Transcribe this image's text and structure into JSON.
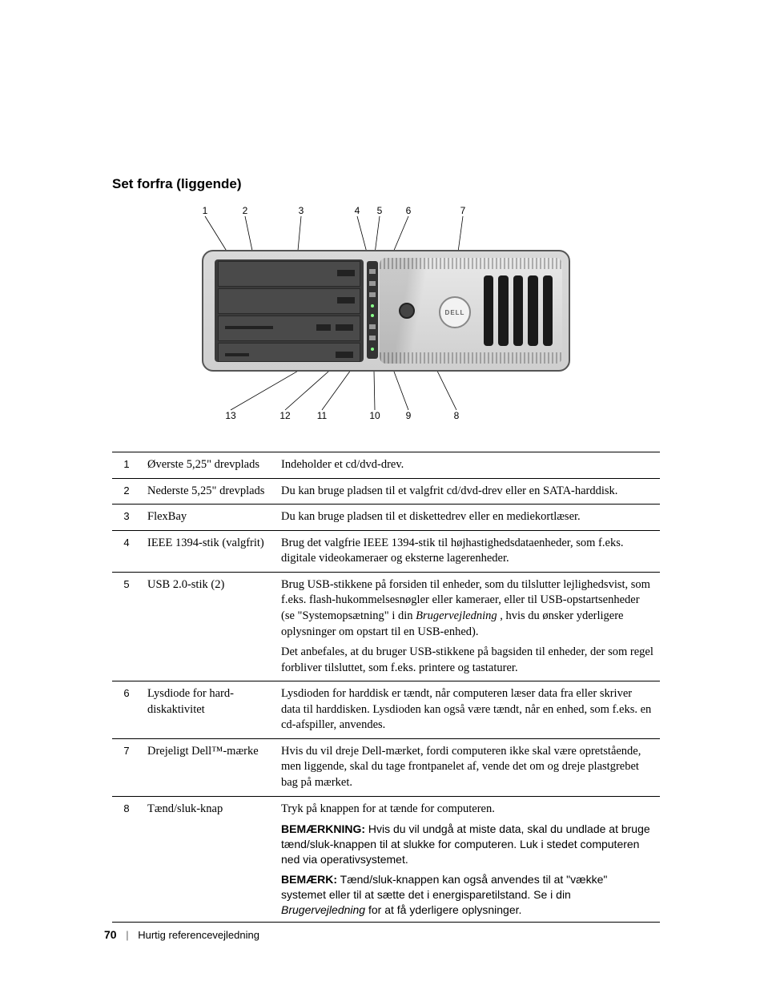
{
  "heading": "Set forfra (liggende)",
  "diagram": {
    "top_labels": [
      "1",
      "2",
      "3",
      "4",
      "5",
      "6",
      "7"
    ],
    "bottom_labels": [
      "13",
      "12",
      "11",
      "10",
      "9",
      "8"
    ],
    "badge_text": "DELL"
  },
  "rows": [
    {
      "num": "1",
      "name": "Øverste 5,25\" drevplads",
      "desc": [
        {
          "type": "plain",
          "text": "Indeholder et cd/dvd-drev."
        }
      ]
    },
    {
      "num": "2",
      "name": "Nederste 5,25\" drevplads",
      "desc": [
        {
          "type": "plain",
          "text": "Du kan bruge pladsen til et valgfrit cd/dvd-drev eller en SATA-harddisk."
        }
      ]
    },
    {
      "num": "3",
      "name": "FlexBay",
      "desc": [
        {
          "type": "plain",
          "text": "Du kan bruge pladsen til et diskettedrev eller en mediekortlæser."
        }
      ]
    },
    {
      "num": "4",
      "name": "IEEE 1394-stik (valgfrit)",
      "desc": [
        {
          "type": "plain",
          "text": "Brug det valgfrie IEEE 1394-stik til højhastighedsdataenheder, som f.eks. digitale videokameraer og eksterne lagerenheder."
        }
      ]
    },
    {
      "num": "5",
      "name": "USB 2.0-stik (2)",
      "desc": [
        {
          "type": "mixed",
          "parts": [
            {
              "t": "Brug USB-stikkene på forsiden til enheder, som du tilslutter lejlighedsvist, som f.eks. flash-hukommelsesnøgler eller kameraer, eller til USB-opstartsenheder (se \"Systemopsætning\" i din "
            },
            {
              "i": "Brugervejledning"
            },
            {
              "t": " , hvis du ønsker yderligere oplysninger om opstart til en USB-enhed)."
            }
          ]
        },
        {
          "type": "plain",
          "text": "Det anbefales, at du bruger USB-stikkene på bagsiden til enheder, der som regel forbliver tilsluttet, som f.eks. printere og tastaturer."
        }
      ]
    },
    {
      "num": "6",
      "name": "Lysdiode for hard-diskaktivitet",
      "desc": [
        {
          "type": "plain",
          "text": "Lysdioden for harddisk er tændt, når computeren læser data fra eller skriver data til harddisken. Lysdioden kan også være tændt, når en enhed, som f.eks. en cd-afspiller, anvendes."
        }
      ]
    },
    {
      "num": "7",
      "name": "Drejeligt Dell™-mærke",
      "desc": [
        {
          "type": "plain",
          "text": "Hvis du vil dreje Dell-mærket, fordi computeren ikke skal være opretstående, men liggende, skal du tage frontpanelet af, vende det om og dreje plastgrebet bag på mærket."
        }
      ]
    },
    {
      "num": "8",
      "name": "Tænd/sluk-knap",
      "desc": [
        {
          "type": "plain",
          "text": "Tryk på knappen for at tænde for computeren."
        },
        {
          "type": "note",
          "label": "BEMÆRKNING:",
          "text": " Hvis du vil undgå at miste data, skal du undlade at bruge tænd/sluk-knappen til at slukke for computeren. Luk i stedet computeren ned via operativsystemet."
        },
        {
          "type": "note2",
          "label": "BEMÆRK:",
          "parts": [
            {
              "t": " Tænd/sluk-knappen kan også anvendes til at \"vække\" systemet eller til at sætte det i energisparetilstand. Se i din "
            },
            {
              "i": "Brugervejledning"
            },
            {
              "t": " for at få yderligere oplysninger."
            }
          ]
        }
      ]
    }
  ],
  "footer": {
    "page": "70",
    "title": "Hurtig referencevejledning"
  }
}
